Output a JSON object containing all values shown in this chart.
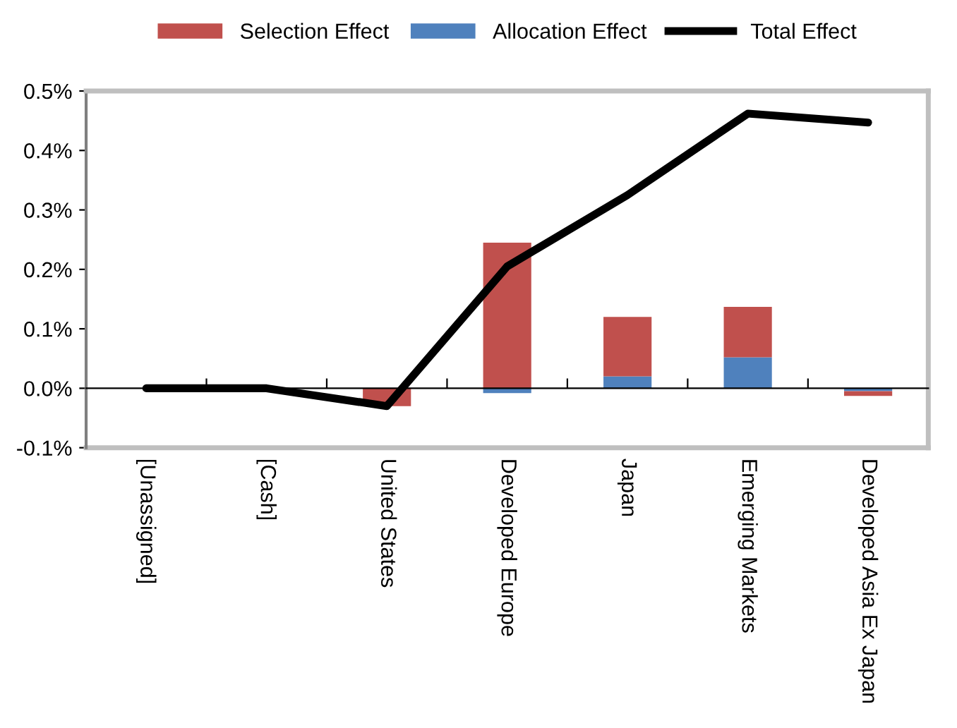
{
  "chart_data": {
    "type": "bar",
    "stacked": true,
    "categories": [
      "[Unassigned]",
      "[Cash]",
      "United States",
      "Developed Europe",
      "Japan",
      "Emerging Markets",
      "Developed Asia Ex Japan"
    ],
    "series": [
      {
        "name": "Allocation Effect",
        "color": "#4f81bd",
        "values": [
          0,
          0,
          0,
          -0.008,
          0.02,
          0.052,
          -0.005
        ]
      },
      {
        "name": "Selection Effect",
        "color": "#c0504d",
        "values": [
          0,
          0,
          -0.03,
          0.245,
          0.1,
          0.085,
          -0.008
        ]
      },
      {
        "name": "Total Effect",
        "type": "line",
        "color": "#000000",
        "values": [
          0,
          0,
          -0.03,
          0.205,
          0.325,
          0.462,
          0.447
        ]
      }
    ],
    "ylim": [
      -0.1,
      0.5
    ],
    "yticks": [
      {
        "value": -0.1,
        "label": "-0.1%"
      },
      {
        "value": 0,
        "label": "0.0%"
      },
      {
        "value": 0.1,
        "label": "0.1%"
      },
      {
        "value": 0.2,
        "label": "0.2%"
      },
      {
        "value": 0.3,
        "label": "0.3%"
      },
      {
        "value": 0.4,
        "label": "0.4%"
      },
      {
        "value": 0.5,
        "label": "0.5%"
      }
    ],
    "legend": "top",
    "marker": "none"
  }
}
